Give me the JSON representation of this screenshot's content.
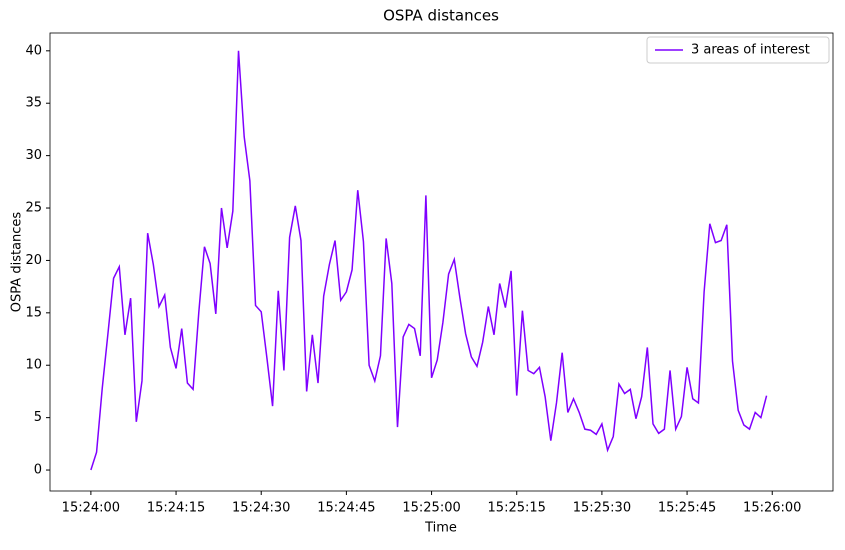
{
  "chart_data": {
    "type": "line",
    "title": "OSPA distances",
    "xlabel": "Time",
    "ylabel": "OSPA distances",
    "x": [
      "15:24:00",
      "15:24:01",
      "15:24:02",
      "15:24:03",
      "15:24:04",
      "15:24:05",
      "15:24:06",
      "15:24:07",
      "15:24:08",
      "15:24:09",
      "15:24:10",
      "15:24:11",
      "15:24:12",
      "15:24:13",
      "15:24:14",
      "15:24:15",
      "15:24:16",
      "15:24:17",
      "15:24:18",
      "15:24:19",
      "15:24:20",
      "15:24:21",
      "15:24:22",
      "15:24:23",
      "15:24:24",
      "15:24:25",
      "15:24:26",
      "15:24:27",
      "15:24:28",
      "15:24:29",
      "15:24:30",
      "15:24:31",
      "15:24:32",
      "15:24:33",
      "15:24:34",
      "15:24:35",
      "15:24:36",
      "15:24:37",
      "15:24:38",
      "15:24:39",
      "15:24:40",
      "15:24:41",
      "15:24:42",
      "15:24:43",
      "15:24:44",
      "15:24:45",
      "15:24:46",
      "15:24:47",
      "15:24:48",
      "15:24:49",
      "15:24:50",
      "15:24:51",
      "15:24:52",
      "15:24:53",
      "15:24:54",
      "15:24:55",
      "15:24:56",
      "15:24:57",
      "15:24:58",
      "15:24:59",
      "15:25:00",
      "15:25:01",
      "15:25:02",
      "15:25:03",
      "15:25:04",
      "15:25:05",
      "15:25:06",
      "15:25:07",
      "15:25:08",
      "15:25:09",
      "15:25:10",
      "15:25:11",
      "15:25:12",
      "15:25:13",
      "15:25:14",
      "15:25:15",
      "15:25:16",
      "15:25:17",
      "15:25:18",
      "15:25:19",
      "15:25:20",
      "15:25:21",
      "15:25:22",
      "15:25:23",
      "15:25:24",
      "15:25:25",
      "15:25:26",
      "15:25:27",
      "15:25:28",
      "15:25:29",
      "15:25:30",
      "15:25:31",
      "15:25:32",
      "15:25:33",
      "15:25:34",
      "15:25:35",
      "15:25:36",
      "15:25:37",
      "15:25:38",
      "15:25:39",
      "15:25:40",
      "15:25:41",
      "15:25:42",
      "15:25:43",
      "15:25:44",
      "15:25:45",
      "15:25:46",
      "15:25:47",
      "15:25:48",
      "15:25:49",
      "15:25:50",
      "15:25:51",
      "15:25:52",
      "15:25:53",
      "15:25:54",
      "15:25:55",
      "15:25:56",
      "15:25:57",
      "15:25:58",
      "15:25:59"
    ],
    "series": [
      {
        "name": "3 areas of interest",
        "color": "#7f00ff",
        "values": [
          0,
          1.7,
          7.8,
          13,
          18.3,
          19.4,
          12.9,
          16.4,
          4.6,
          8.5,
          22.6,
          19.6,
          15.6,
          16.7,
          11.7,
          9.7,
          13.5,
          8.3,
          7.7,
          15,
          21.3,
          19.7,
          14.9,
          25,
          21.2,
          24.7,
          40,
          31.8,
          27.6,
          15.7,
          15.1,
          10.7,
          6.1,
          17.1,
          9.5,
          22.2,
          25.2,
          21.9,
          7.5,
          12.9,
          8.3,
          16.6,
          19.6,
          21.9,
          16.2,
          17,
          19.1,
          26.7,
          21.8,
          10,
          8.5,
          10.9,
          22.1,
          17.8,
          4.1,
          12.7,
          13.9,
          13.5,
          10.9,
          26.2,
          8.8,
          10.5,
          14.1,
          18.7,
          20.1,
          16.4,
          13,
          10.8,
          9.9,
          12.2,
          15.6,
          12.9,
          17.8,
          15.5,
          19,
          7.1,
          15.2,
          9.5,
          9.2,
          9.8,
          7,
          2.8,
          6.4,
          11.2,
          5.5,
          6.8,
          5.5,
          3.9,
          3.8,
          3.4,
          4.4,
          1.9,
          3.2,
          8.2,
          7.3,
          7.7,
          4.9,
          7,
          11.7,
          4.4,
          3.5,
          3.9,
          9.5,
          3.9,
          5.1,
          9.8,
          6.8,
          6.4,
          17,
          23.5,
          21.7,
          21.9,
          23.4,
          10.4,
          5.7,
          4.3,
          3.9,
          5.5,
          5,
          7.1
        ]
      }
    ],
    "xlim": [
      "15:23:52.8",
      "15:26:10.7"
    ],
    "xticks": [
      "15:24:00",
      "15:24:15",
      "15:24:30",
      "15:24:45",
      "15:25:00",
      "15:25:15",
      "15:25:30",
      "15:25:45",
      "15:26:00"
    ],
    "ylim": [
      -2,
      41.7
    ],
    "yticks": [
      0,
      5,
      10,
      15,
      20,
      25,
      30,
      35,
      40
    ],
    "legend": "upper right"
  }
}
